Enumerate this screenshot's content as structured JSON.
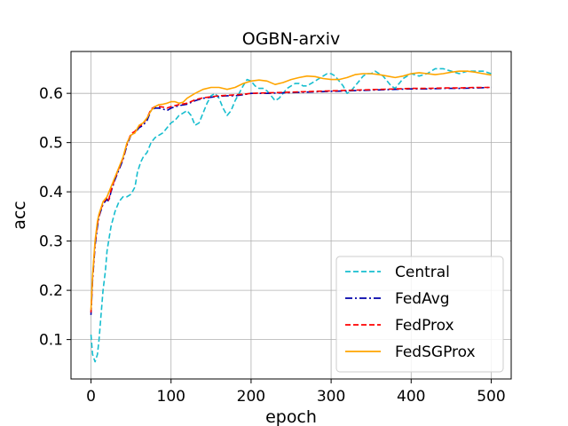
{
  "chart_data": {
    "type": "line",
    "title": "OGBN-arxiv",
    "xlabel": "epoch",
    "ylabel": "acc",
    "xlim": [
      -25,
      525
    ],
    "ylim": [
      0.02,
      0.685
    ],
    "xticks": [
      0,
      100,
      200,
      300,
      400,
      500
    ],
    "yticks": [
      0.1,
      0.2,
      0.3,
      0.4,
      0.5,
      0.6
    ],
    "grid": true,
    "legend_position": "bottom-right",
    "series": [
      {
        "name": "Central",
        "color": "#17becf",
        "style": "dashed",
        "x": [
          0,
          2,
          5,
          8,
          10,
          12,
          15,
          18,
          20,
          25,
          30,
          35,
          40,
          45,
          50,
          55,
          58,
          62,
          65,
          70,
          75,
          80,
          85,
          90,
          95,
          100,
          105,
          110,
          115,
          120,
          125,
          130,
          135,
          140,
          145,
          150,
          155,
          160,
          165,
          170,
          175,
          180,
          185,
          190,
          195,
          200,
          205,
          210,
          215,
          220,
          225,
          230,
          235,
          240,
          245,
          250,
          255,
          260,
          265,
          270,
          275,
          280,
          285,
          290,
          295,
          300,
          305,
          310,
          315,
          320,
          325,
          330,
          335,
          340,
          345,
          350,
          355,
          360,
          365,
          370,
          375,
          380,
          385,
          390,
          395,
          400,
          410,
          420,
          430,
          440,
          450,
          460,
          470,
          480,
          490,
          500
        ],
        "values": [
          0.11,
          0.07,
          0.055,
          0.07,
          0.1,
          0.14,
          0.2,
          0.24,
          0.28,
          0.33,
          0.36,
          0.38,
          0.39,
          0.39,
          0.395,
          0.41,
          0.44,
          0.46,
          0.47,
          0.48,
          0.5,
          0.51,
          0.515,
          0.52,
          0.53,
          0.54,
          0.545,
          0.555,
          0.56,
          0.565,
          0.555,
          0.535,
          0.54,
          0.56,
          0.58,
          0.595,
          0.6,
          0.59,
          0.57,
          0.555,
          0.565,
          0.585,
          0.6,
          0.615,
          0.628,
          0.625,
          0.615,
          0.61,
          0.61,
          0.605,
          0.595,
          0.585,
          0.59,
          0.6,
          0.61,
          0.615,
          0.62,
          0.62,
          0.615,
          0.615,
          0.62,
          0.625,
          0.63,
          0.635,
          0.64,
          0.64,
          0.635,
          0.625,
          0.615,
          0.6,
          0.605,
          0.615,
          0.625,
          0.635,
          0.64,
          0.64,
          0.645,
          0.64,
          0.635,
          0.625,
          0.615,
          0.61,
          0.62,
          0.63,
          0.635,
          0.64,
          0.635,
          0.64,
          0.65,
          0.65,
          0.645,
          0.64,
          0.645,
          0.645,
          0.645,
          0.64
        ]
      },
      {
        "name": "FedAvg",
        "color": "#0000aa",
        "style": "dashdot",
        "x": [
          0,
          2,
          5,
          8,
          10,
          15,
          20,
          22,
          25,
          28,
          30,
          35,
          40,
          45,
          50,
          55,
          60,
          65,
          70,
          75,
          80,
          85,
          90,
          95,
          100,
          110,
          120,
          130,
          140,
          150,
          160,
          170,
          180,
          190,
          200,
          220,
          240,
          260,
          280,
          300,
          320,
          340,
          360,
          380,
          400,
          420,
          440,
          460,
          480,
          500
        ],
        "values": [
          0.15,
          0.22,
          0.29,
          0.33,
          0.35,
          0.375,
          0.385,
          0.38,
          0.4,
          0.415,
          0.425,
          0.445,
          0.465,
          0.495,
          0.515,
          0.52,
          0.53,
          0.535,
          0.545,
          0.565,
          0.57,
          0.57,
          0.568,
          0.565,
          0.57,
          0.575,
          0.578,
          0.585,
          0.59,
          0.592,
          0.594,
          0.595,
          0.595,
          0.597,
          0.6,
          0.6,
          0.601,
          0.602,
          0.603,
          0.604,
          0.605,
          0.606,
          0.607,
          0.608,
          0.609,
          0.609,
          0.61,
          0.61,
          0.611,
          0.612
        ]
      },
      {
        "name": "FedProx",
        "color": "#ff0000",
        "style": "dashed",
        "x": [
          0,
          2,
          5,
          8,
          10,
          15,
          20,
          22,
          25,
          28,
          30,
          35,
          40,
          45,
          50,
          55,
          60,
          65,
          70,
          75,
          80,
          85,
          90,
          95,
          100,
          110,
          120,
          130,
          140,
          150,
          160,
          170,
          180,
          190,
          200,
          220,
          240,
          260,
          280,
          300,
          320,
          340,
          360,
          380,
          400,
          420,
          440,
          460,
          480,
          500
        ],
        "values": [
          0.155,
          0.225,
          0.295,
          0.335,
          0.352,
          0.378,
          0.388,
          0.383,
          0.403,
          0.418,
          0.428,
          0.448,
          0.468,
          0.498,
          0.518,
          0.523,
          0.533,
          0.538,
          0.55,
          0.568,
          0.573,
          0.573,
          0.572,
          0.57,
          0.573,
          0.577,
          0.58,
          0.587,
          0.591,
          0.593,
          0.595,
          0.596,
          0.597,
          0.598,
          0.6,
          0.601,
          0.602,
          0.603,
          0.604,
          0.605,
          0.606,
          0.607,
          0.608,
          0.609,
          0.61,
          0.61,
          0.611,
          0.611,
          0.612,
          0.612
        ]
      },
      {
        "name": "FedSGProx",
        "color": "#ffa500",
        "style": "solid",
        "x": [
          0,
          2,
          5,
          8,
          10,
          15,
          20,
          25,
          30,
          35,
          40,
          45,
          50,
          55,
          60,
          65,
          70,
          75,
          80,
          85,
          90,
          95,
          100,
          105,
          110,
          115,
          120,
          130,
          140,
          150,
          160,
          170,
          180,
          190,
          200,
          210,
          220,
          230,
          240,
          250,
          260,
          270,
          280,
          290,
          300,
          310,
          320,
          330,
          340,
          350,
          360,
          370,
          380,
          390,
          400,
          410,
          420,
          430,
          440,
          450,
          460,
          470,
          480,
          490,
          500
        ],
        "values": [
          0.16,
          0.23,
          0.3,
          0.34,
          0.355,
          0.38,
          0.39,
          0.41,
          0.43,
          0.45,
          0.47,
          0.5,
          0.515,
          0.52,
          0.535,
          0.54,
          0.55,
          0.565,
          0.573,
          0.577,
          0.578,
          0.58,
          0.583,
          0.583,
          0.58,
          0.582,
          0.59,
          0.6,
          0.608,
          0.612,
          0.612,
          0.608,
          0.612,
          0.62,
          0.625,
          0.627,
          0.625,
          0.618,
          0.622,
          0.628,
          0.632,
          0.635,
          0.634,
          0.63,
          0.628,
          0.628,
          0.632,
          0.638,
          0.64,
          0.64,
          0.638,
          0.635,
          0.632,
          0.635,
          0.64,
          0.642,
          0.64,
          0.638,
          0.64,
          0.643,
          0.645,
          0.645,
          0.643,
          0.64,
          0.637
        ]
      }
    ]
  }
}
